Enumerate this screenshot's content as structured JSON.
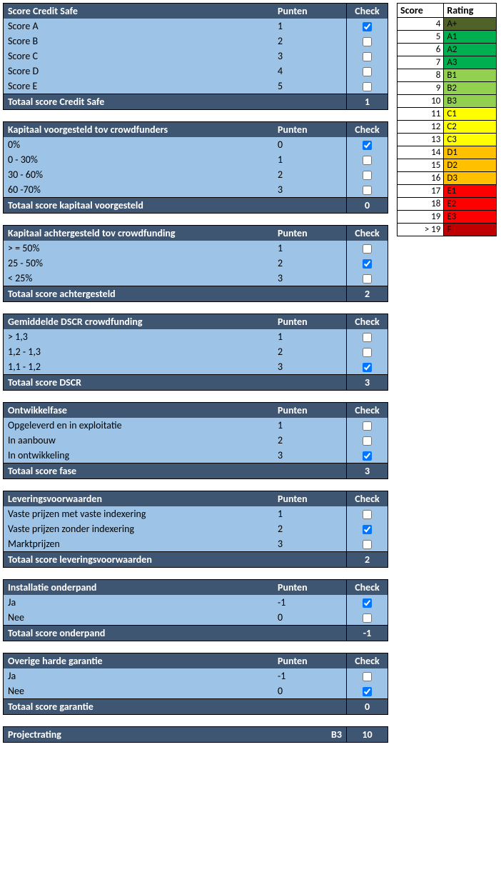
{
  "colors": {
    "header_bg": "#3f5672",
    "header_fg": "#ffffff",
    "row_bg": "#9dc3e6",
    "border": "#000000"
  },
  "column_headers": {
    "punten": "Punten",
    "check": "Check"
  },
  "sections": [
    {
      "title": "Score Credit Safe",
      "rows": [
        {
          "label": "Score A",
          "punten": "1",
          "checked": true
        },
        {
          "label": "Score B",
          "punten": "2",
          "checked": false
        },
        {
          "label": "Score C",
          "punten": "3",
          "checked": false
        },
        {
          "label": "Score D",
          "punten": "4",
          "checked": false
        },
        {
          "label": "Score E",
          "punten": "5",
          "checked": false
        }
      ],
      "total_label": "Totaal score Credit Safe",
      "total_value": "1"
    },
    {
      "title": "Kapitaal voorgesteld tov crowdfunders",
      "rows": [
        {
          "label": "0%",
          "punten": "0",
          "checked": true
        },
        {
          "label": "0 - 30%",
          "punten": "1",
          "checked": false
        },
        {
          "label": "30 - 60%",
          "punten": "2",
          "checked": false
        },
        {
          "label": "60 -70%",
          "punten": "3",
          "checked": false
        }
      ],
      "total_label": "Totaal score kapitaal voorgesteld",
      "total_value": "0"
    },
    {
      "title": "Kapitaal achtergesteld tov crowdfunding",
      "rows": [
        {
          "label": "> = 50%",
          "punten": "1",
          "checked": false
        },
        {
          "label": "25 - 50%",
          "punten": "2",
          "checked": true
        },
        {
          "label": "< 25%",
          "punten": "3",
          "checked": false
        }
      ],
      "total_label": "Totaal score achtergesteld",
      "total_value": "2"
    },
    {
      "title": "Gemiddelde DSCR crowdfunding",
      "rows": [
        {
          "label": "> 1,3",
          "punten": "1",
          "checked": false
        },
        {
          "label": "1,2 - 1,3",
          "punten": "2",
          "checked": false
        },
        {
          "label": "1,1 - 1,2",
          "punten": "3",
          "checked": true
        }
      ],
      "total_label": "Totaal score DSCR",
      "total_value": "3"
    },
    {
      "title": "Ontwikkelfase",
      "rows": [
        {
          "label": "Opgeleverd en in exploitatie",
          "punten": "1",
          "checked": false
        },
        {
          "label": "In aanbouw",
          "punten": "2",
          "checked": false
        },
        {
          "label": "In ontwikkeling",
          "punten": "3",
          "checked": true
        }
      ],
      "total_label": "Totaal score fase",
      "total_value": "3"
    },
    {
      "title": "Leveringsvoorwaarden",
      "rows": [
        {
          "label": "Vaste prijzen met vaste indexering",
          "punten": "1",
          "checked": false
        },
        {
          "label": "Vaste prijzen zonder indexering",
          "punten": "2",
          "checked": true
        },
        {
          "label": "Marktprijzen",
          "punten": "3",
          "checked": false
        }
      ],
      "total_label": "Totaal score leveringsvoorwaarden",
      "total_value": "2"
    },
    {
      "title": "Installatie onderpand",
      "rows": [
        {
          "label": "Ja",
          "punten": "-1",
          "checked": true
        },
        {
          "label": "Nee",
          "punten": "0",
          "checked": false
        }
      ],
      "total_label": "Totaal score onderpand",
      "total_value": "-1"
    },
    {
      "title": "Overige harde garantie",
      "rows": [
        {
          "label": "Ja",
          "punten": "-1",
          "checked": false
        },
        {
          "label": "Nee",
          "punten": "0",
          "checked": true
        }
      ],
      "total_label": "Totaal score garantie",
      "total_value": "0"
    }
  ],
  "project_rating": {
    "label": "Projectrating",
    "rating": "B3",
    "score": "10"
  },
  "rating_table": {
    "headers": {
      "score": "Score",
      "rating": "Rating"
    },
    "rows": [
      {
        "score": "4",
        "rating": "A+",
        "color": "#4f6228"
      },
      {
        "score": "5",
        "rating": "A1",
        "color": "#00b050"
      },
      {
        "score": "6",
        "rating": "A2",
        "color": "#00b050"
      },
      {
        "score": "7",
        "rating": "A3",
        "color": "#00b050"
      },
      {
        "score": "8",
        "rating": "B1",
        "color": "#92d050"
      },
      {
        "score": "9",
        "rating": "B2",
        "color": "#92d050"
      },
      {
        "score": "10",
        "rating": "B3",
        "color": "#92d050"
      },
      {
        "score": "11",
        "rating": "C1",
        "color": "#ffff00"
      },
      {
        "score": "12",
        "rating": "C2",
        "color": "#ffff00"
      },
      {
        "score": "13",
        "rating": "C3",
        "color": "#ffff00"
      },
      {
        "score": "14",
        "rating": "D1",
        "color": "#ffc000"
      },
      {
        "score": "15",
        "rating": "D2",
        "color": "#ffc000"
      },
      {
        "score": "16",
        "rating": "D3",
        "color": "#ffc000"
      },
      {
        "score": "17",
        "rating": "E1",
        "color": "#ff0000"
      },
      {
        "score": "18",
        "rating": "E2",
        "color": "#ff0000"
      },
      {
        "score": "19",
        "rating": "E3",
        "color": "#ff0000"
      },
      {
        "score": "> 19",
        "rating": "F",
        "color": "#c00000"
      }
    ]
  }
}
